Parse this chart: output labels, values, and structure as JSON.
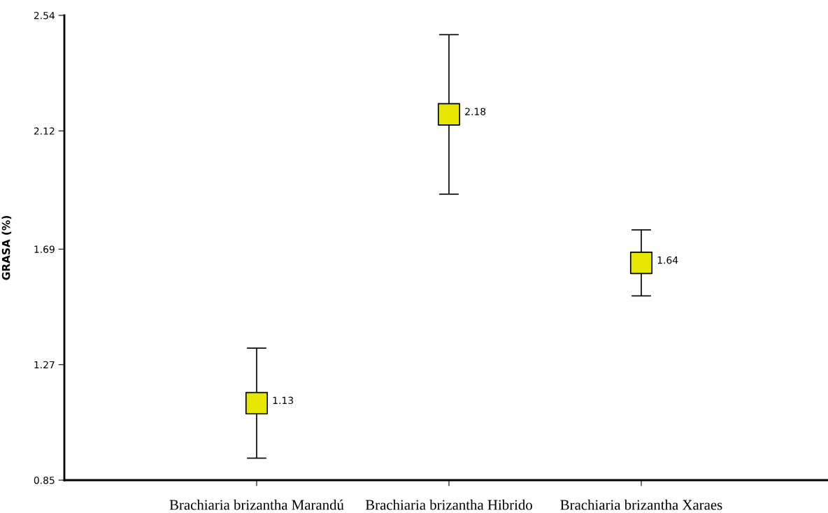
{
  "chart_data": {
    "type": "scatter",
    "ylabel": "GRASA (%)",
    "categories": [
      "Brachiaria brizantha Marandú",
      "Brachiaria brizantha Hibrido",
      "Brachiaria brizantha Xaraes"
    ],
    "values": [
      1.13,
      2.18,
      1.64
    ],
    "errors": [
      0.2,
      0.29,
      0.12
    ],
    "color": "#e6e600",
    "marker": "square",
    "data_labels": true,
    "grid": false,
    "ylim": [
      0.85,
      2.54
    ],
    "yticks": [
      0.85,
      1.27,
      1.69,
      2.12,
      2.54
    ]
  }
}
